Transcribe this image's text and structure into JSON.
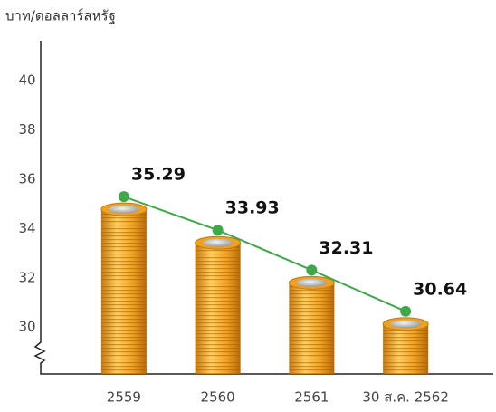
{
  "chart_data": {
    "type": "line",
    "y_axis_label": "บาท/ดอลลาร์สหรัฐ",
    "categories": [
      "2559",
      "2560",
      "2561",
      "30 ส.ค. 2562"
    ],
    "series": [
      {
        "color": "#3fa84a",
        "values": [
          35.29,
          33.93,
          32.31,
          30.64
        ]
      }
    ],
    "bar_color": "#f0a21e",
    "ylim": [
      28.1,
      41.5
    ],
    "yticks": [
      30,
      32,
      34,
      36,
      38,
      40
    ]
  }
}
